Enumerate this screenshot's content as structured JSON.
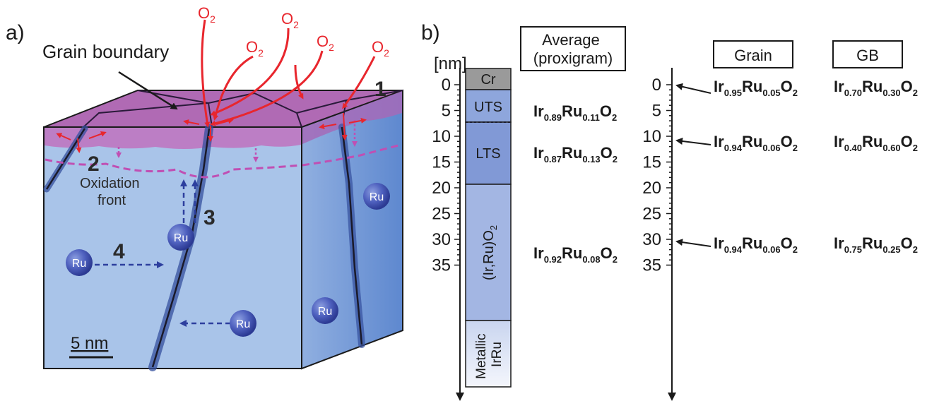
{
  "panel_a": {
    "label": "a)",
    "grain_boundary_label": "Grain boundary",
    "oxidation_front_line1": "Oxidation",
    "oxidation_front_line2": "front",
    "scale_bar_label": "5 nm",
    "oxygen_label": "O",
    "oxygen_subscript": "2",
    "ru_label": "Ru",
    "step_numbers": [
      "1",
      "2",
      "3",
      "4"
    ],
    "colors": {
      "cube_front": "#a9c4e9",
      "cube_side": "#6f98d6",
      "oxide_layer": "#b56fb6",
      "oxygen_arrows": "#e8262d",
      "ru_arrows": "#2d3f9e",
      "oxidation_front": "#c04fb3"
    }
  },
  "panel_b": {
    "label": "b)",
    "unit_label": "[nm]",
    "depth_ticks": [
      "0",
      "5",
      "10",
      "15",
      "20",
      "25",
      "30",
      "35"
    ],
    "layers": {
      "cr": "Cr",
      "uts": "UTS",
      "lts": "LTS",
      "oxide_main": "(Ir,Ru)O",
      "oxide_sub": "2",
      "metallic_line1": "Metallic",
      "metallic_line2": "IrRu"
    },
    "headers": {
      "average_line1": "Average",
      "average_line2": "(proxigram)",
      "grain": "Grain",
      "gb": "GB"
    },
    "average": [
      {
        "ir": "0.89",
        "ru": "0.11"
      },
      {
        "ir": "0.87",
        "ru": "0.13"
      },
      {
        "ir": "0.92",
        "ru": "0.08"
      }
    ],
    "grain": [
      {
        "ir": "0.95",
        "ru": "0.05"
      },
      {
        "ir": "0.94",
        "ru": "0.06"
      },
      {
        "ir": "0.94",
        "ru": "0.06"
      }
    ],
    "gb": [
      {
        "ir": "0.70",
        "ru": "0.30"
      },
      {
        "ir": "0.40",
        "ru": "0.60"
      },
      {
        "ir": "0.75",
        "ru": "0.25"
      }
    ],
    "formula_parts": {
      "ir": "Ir",
      "ru": "Ru",
      "o": "O",
      "o_sub": "2"
    },
    "colors": {
      "cr": "#9a9a9a",
      "uts": "#8ea6dc",
      "lts": "#8199d6",
      "oxide": "#a3b6e3",
      "metallic_top": "#c9d5ef",
      "metallic_bottom": "#f2f5fc"
    }
  }
}
